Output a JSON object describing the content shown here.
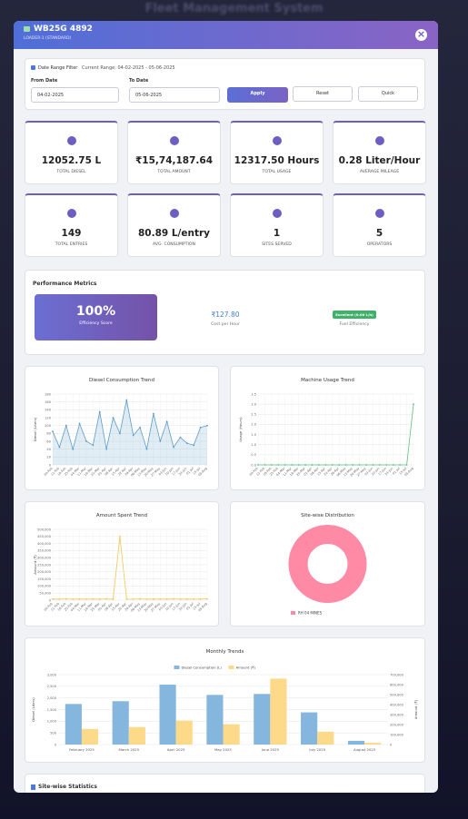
{
  "background": {
    "title": "Fleet Management System"
  },
  "header": {
    "title": "WB25G 4892",
    "subtitle": "LOADER-1 (STANDARD)",
    "close": "×"
  },
  "filter": {
    "title": "Date Range Filter",
    "current": "Current Range: 04-02-2025 - 05-06-2025",
    "from_label": "From Date",
    "from_value": "04-02-2025",
    "to_label": "To Date",
    "to_value": "05-06-2025",
    "apply": "Apply",
    "reset": "Reset",
    "quick": "Quick"
  },
  "stats": [
    {
      "value": "12052.75 L",
      "label": "TOTAL DIESEL"
    },
    {
      "value": "₹15,74,187.64",
      "label": "TOTAL AMOUNT"
    },
    {
      "value": "12317.50 Hours",
      "label": "TOTAL USAGE"
    },
    {
      "value": "0.28 Liter/Hour",
      "label": "AVERAGE MILEAGE"
    },
    {
      "value": "149",
      "label": "TOTAL ENTRIES"
    },
    {
      "value": "80.89 L/entry",
      "label": "AVG. CONSUMPTION"
    },
    {
      "value": "1",
      "label": "SITES SERVED"
    },
    {
      "value": "5",
      "label": "OPERATORS"
    }
  ],
  "performance": {
    "title": "Performance Metrics",
    "score": "100%",
    "score_label": "Efficiency Score",
    "cost": "₹127.80",
    "cost_label": "Cost per Hour",
    "badge": "Excellent (0.00 L/h)",
    "badge_label": "Fuel Efficiency"
  },
  "charts": [
    {
      "type": "line",
      "title": "Diesel Consumption Trend",
      "ylabel": "Diesel (Liters)",
      "color": "#5b9bc8",
      "area": true,
      "grid": true,
      "categories": [
        "04-Feb",
        "11-Feb",
        "18-Feb",
        "25-Feb",
        "04-Mar",
        "11-Mar",
        "18-Mar",
        "25-Mar",
        "01-Apr",
        "08-Apr",
        "15-Apr",
        "22-Apr",
        "29-Apr",
        "06-May",
        "13-May",
        "20-May",
        "27-May",
        "03-Jun",
        "10-Jun",
        "17-Jun",
        "24-Jun",
        "01-Jul",
        "15-Jul",
        "05-Aug"
      ],
      "values": [
        85,
        45,
        100,
        40,
        105,
        60,
        50,
        135,
        40,
        120,
        80,
        165,
        75,
        95,
        40,
        130,
        60,
        110,
        45,
        70,
        55,
        50,
        95,
        100
      ],
      "ylim": [
        0,
        180
      ],
      "yticks": [
        0,
        20,
        40,
        60,
        80,
        100,
        120,
        140,
        160,
        180
      ]
    },
    {
      "type": "line",
      "title": "Machine Usage Trend",
      "ylabel": "Usage (Hours)",
      "color": "#5fbf7f",
      "grid": true,
      "categories": [
        "04-Feb",
        "11-Feb",
        "18-Feb",
        "25-Feb",
        "04-Mar",
        "11-Mar",
        "18-Mar",
        "25-Mar",
        "01-Apr",
        "08-Apr",
        "15-Apr",
        "22-Apr",
        "29-Apr",
        "06-May",
        "13-May",
        "20-May",
        "27-May",
        "03-Jun",
        "10-Jun",
        "17-Jun",
        "24-Jun",
        "01-Jul",
        "15-Jul",
        "05-Aug"
      ],
      "values": [
        0,
        0,
        0,
        0,
        0,
        0,
        0,
        0,
        0,
        0,
        0,
        0,
        0,
        0,
        0,
        0,
        0,
        0,
        0,
        0,
        0,
        0,
        0,
        3
      ],
      "ylim": [
        0,
        3.5
      ],
      "yticks": [
        {
          "value": 0,
          "label": "0.0"
        },
        0.5,
        {
          "value": 1,
          "label": "1.0"
        },
        1.5,
        {
          "value": 2,
          "label": "2.0"
        },
        2.5,
        {
          "value": 3,
          "label": "3.0"
        },
        3.5
      ]
    },
    {
      "type": "line",
      "title": "Amount Spent Trend",
      "ylabel": "Amount (₹)",
      "color": "#f5c451",
      "grid": true,
      "categories": [
        "04-Feb",
        "11-Feb",
        "18-Feb",
        "25-Feb",
        "04-Mar",
        "11-Mar",
        "18-Mar",
        "25-Mar",
        "01-Apr",
        "08-Apr",
        "15-Apr",
        "22-Apr",
        "29-Apr",
        "06-May",
        "13-May",
        "20-May",
        "27-May",
        "03-Jun",
        "10-Jun",
        "17-Jun",
        "24-Jun",
        "01-Jul",
        "15-Jul",
        "05-Aug"
      ],
      "values": [
        8000,
        7000,
        9000,
        7000,
        8000,
        7000,
        8000,
        7000,
        9000,
        7000,
        450000,
        8000,
        7000,
        9000,
        7000,
        8000,
        7000,
        8000,
        9000,
        7000,
        8000,
        7000,
        8000,
        9000
      ],
      "ylim": [
        0,
        500000
      ],
      "yticks": [
        0,
        {
          "value": 50000,
          "label": "50,000"
        },
        {
          "value": 100000,
          "label": "100,000"
        },
        {
          "value": 150000,
          "label": "150,000"
        },
        {
          "value": 200000,
          "label": "200,000"
        },
        {
          "value": 250000,
          "label": "250,000"
        },
        {
          "value": 300000,
          "label": "300,000"
        },
        {
          "value": 350000,
          "label": "350,000"
        },
        {
          "value": 400000,
          "label": "400,000"
        },
        {
          "value": 450000,
          "label": "450,000"
        },
        {
          "value": 500000,
          "label": "500,000"
        }
      ]
    },
    {
      "type": "pie",
      "title": "Site-wise Distribution",
      "categories": [
        "RH 04 MINES"
      ],
      "values": [
        100
      ],
      "colors": [
        "#ff8aa5"
      ]
    },
    {
      "type": "bar",
      "title": "Monthly Trends",
      "ylabel": "Diesel (Liters)",
      "y2label": "Amount (₹)",
      "grid": true,
      "categories": [
        "February 2025",
        "March 2025",
        "April 2025",
        "May 2025",
        "June 2025",
        "July 2025",
        "August 2025"
      ],
      "series": [
        {
          "name": "Diesel Consumption (L)",
          "color": "#85b6de",
          "values": [
            1740,
            1860,
            2570,
            2130,
            2170,
            1380,
            160
          ]
        },
        {
          "name": "Amount (₹)",
          "color": "#fdd98a",
          "axis": "y2",
          "values": [
            156000,
            175000,
            240000,
            203000,
            660000,
            129000,
            18000
          ]
        }
      ],
      "ylim": [
        0,
        3000
      ],
      "yticks": [
        0,
        500,
        {
          "value": 1000,
          "label": "1,000"
        },
        {
          "value": 1500,
          "label": "1,500"
        },
        {
          "value": 2000,
          "label": "2,000"
        },
        {
          "value": 2500,
          "label": "2,500"
        },
        {
          "value": 3000,
          "label": "3,000"
        }
      ],
      "y2lim": [
        0,
        700000
      ],
      "y2ticks": [
        0,
        {
          "value": 100000,
          "label": "100,000"
        },
        {
          "value": 200000,
          "label": "200,000"
        },
        {
          "value": 300000,
          "label": "300,000"
        },
        {
          "value": 400000,
          "label": "400,000"
        },
        {
          "value": 500000,
          "label": "500,000"
        },
        {
          "value": 600000,
          "label": "600,000"
        },
        {
          "value": 700000,
          "label": "700,000"
        }
      ]
    }
  ],
  "sites": {
    "title": "Site-wise Statistics"
  }
}
